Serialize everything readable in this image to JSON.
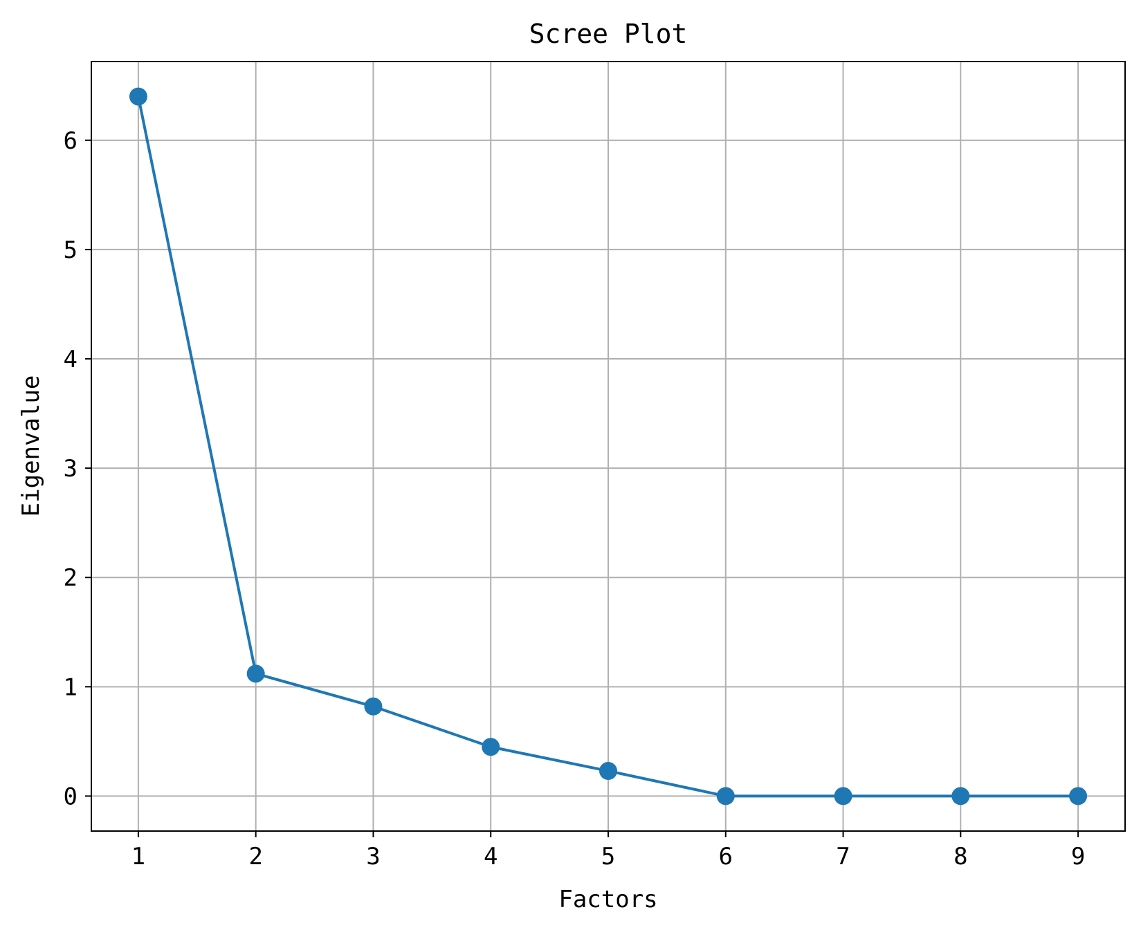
{
  "chart_data": {
    "type": "line",
    "title": "Scree Plot",
    "xlabel": "Factors",
    "ylabel": "Eigenvalue",
    "x": [
      1,
      2,
      3,
      4,
      5,
      6,
      7,
      8,
      9
    ],
    "series": [
      {
        "values": [
          6.4,
          1.12,
          0.82,
          0.45,
          0.23,
          0.0,
          0.0,
          0.0,
          0.0
        ],
        "color": "#1f77b4",
        "marker": "circle"
      }
    ],
    "xticks": [
      "1",
      "2",
      "3",
      "4",
      "5",
      "6",
      "7",
      "8",
      "9"
    ],
    "yticks": [
      "0",
      "1",
      "2",
      "3",
      "4",
      "5",
      "6"
    ],
    "xlim": [
      0.6,
      9.4
    ],
    "ylim": [
      -0.32,
      6.72
    ],
    "grid": true,
    "grid_color": "#b0b0b0",
    "legend": "none"
  }
}
